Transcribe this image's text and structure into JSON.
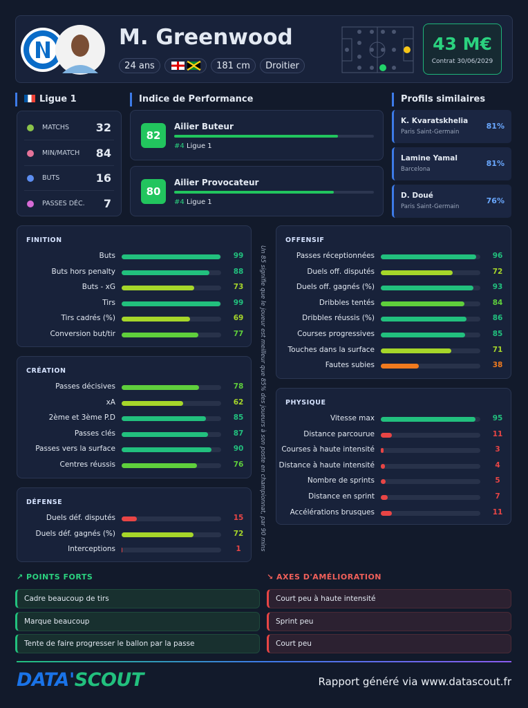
{
  "header": {
    "name": "M. Greenwood",
    "tags": [
      "24 ans",
      "181 cm",
      "Droitier"
    ],
    "market_value": "43 M€",
    "contract": "Contrat 30/06/2029"
  },
  "league": {
    "name": "Ligue 1",
    "stats": [
      {
        "label": "MATCHS",
        "value": 32
      },
      {
        "label": "MIN/MATCH",
        "value": 84
      },
      {
        "label": "BUTS",
        "value": 16
      },
      {
        "label": "PASSES DÉC.",
        "value": 7
      }
    ]
  },
  "performance": {
    "title": "Indice de Performance",
    "profiles": [
      {
        "score": 82,
        "name": "Ailier Buteur",
        "rank": "#4",
        "league": "Ligue 1"
      },
      {
        "score": 80,
        "name": "Ailier Provocateur",
        "rank": "#4",
        "league": "Ligue 1"
      }
    ]
  },
  "similar": {
    "title": "Profils similaires",
    "players": [
      {
        "name": "K. Kvaratskhelia",
        "club": "Paris Saint-Germain",
        "match": "81%"
      },
      {
        "name": "Lamine Yamal",
        "club": "Barcelona",
        "match": "81%"
      },
      {
        "name": "D. Doué",
        "club": "Paris Saint-Germain",
        "match": "76%"
      }
    ]
  },
  "xlim": [
    0,
    100
  ],
  "sections": [
    {
      "title": "FINITION",
      "rows": [
        {
          "label": "Buts",
          "value": 99
        },
        {
          "label": "Buts hors penalty",
          "value": 88
        },
        {
          "label": "Buts - xG",
          "value": 73
        },
        {
          "label": "Tirs",
          "value": 99
        },
        {
          "label": "Tirs cadrés (%)",
          "value": 69
        },
        {
          "label": "Conversion but/tir",
          "value": 77
        }
      ]
    },
    {
      "title": "CRÉATION",
      "rows": [
        {
          "label": "Passes décisives",
          "value": 78
        },
        {
          "label": "xA",
          "value": 62
        },
        {
          "label": "2ème et 3ème P.D",
          "value": 85
        },
        {
          "label": "Passes clés",
          "value": 87
        },
        {
          "label": "Passes vers la surface",
          "value": 90
        },
        {
          "label": "Centres réussis",
          "value": 76
        }
      ]
    },
    {
      "title": "DÉFENSE",
      "rows": [
        {
          "label": "Duels déf. disputés",
          "value": 15
        },
        {
          "label": "Duels déf. gagnés (%)",
          "value": 72
        },
        {
          "label": "Interceptions",
          "value": 1
        }
      ]
    },
    {
      "title": "OFFENSIF",
      "rows": [
        {
          "label": "Passes réceptionnées",
          "value": 96
        },
        {
          "label": "Duels off. disputés",
          "value": 72
        },
        {
          "label": "Duels off. gagnés (%)",
          "value": 93
        },
        {
          "label": "Dribbles tentés",
          "value": 84
        },
        {
          "label": "Dribbles réussis (%)",
          "value": 86
        },
        {
          "label": "Courses progressives",
          "value": 85
        },
        {
          "label": "Touches dans la surface",
          "value": 71
        },
        {
          "label": "Fautes subies",
          "value": 38
        }
      ]
    },
    {
      "title": "PHYSIQUE",
      "rows": [
        {
          "label": "Vitesse max",
          "value": 95
        },
        {
          "label": "Distance parcourue",
          "value": 11
        },
        {
          "label": "Courses à haute intensité",
          "value": 3
        },
        {
          "label": "Distance à haute intensité",
          "value": 4
        },
        {
          "label": "Nombre de sprints",
          "value": 5
        },
        {
          "label": "Distance en sprint",
          "value": 7
        },
        {
          "label": "Accélérations brusques",
          "value": 11
        }
      ]
    }
  ],
  "note": "Un 85 signifie que le joueur est meilleur que 85% des joueurs à son poste en championnat, par 90 mins",
  "strengths": {
    "title": "POINTS FORTS",
    "items": [
      "Cadre beaucoup de tirs",
      "Marque beaucoup",
      "Tente de faire progresser le ballon par la passe"
    ]
  },
  "improvements": {
    "title": "AXES D'AMÉLIORATION",
    "items": [
      "Court peu à haute intensité",
      "Sprint peu",
      "Court peu"
    ]
  },
  "footer": {
    "logo": [
      "DATA'",
      "SCOUT"
    ],
    "text": "Rapport généré via www.datascout.fr"
  }
}
